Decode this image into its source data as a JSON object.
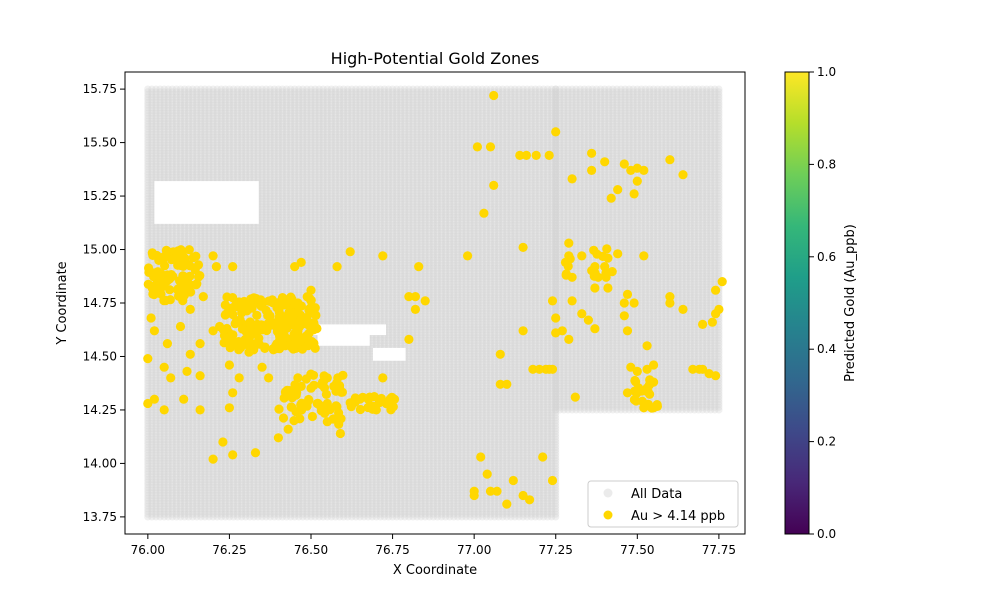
{
  "chart_data": {
    "type": "scatter",
    "title": "High-Potential Gold Zones",
    "xlabel": "X Coordinate",
    "ylabel": "Y Coordinate",
    "xlim": [
      75.93,
      77.83
    ],
    "ylim": [
      13.67,
      15.83
    ],
    "xticks": [
      76.0,
      76.25,
      76.5,
      76.75,
      77.0,
      77.25,
      77.5,
      77.75
    ],
    "xtick_labels": [
      "76.00",
      "76.25",
      "76.50",
      "76.75",
      "77.00",
      "77.25",
      "77.50",
      "77.75"
    ],
    "yticks": [
      13.75,
      14.0,
      14.25,
      14.5,
      14.75,
      15.0,
      15.25,
      15.5,
      15.75
    ],
    "ytick_labels": [
      "13.75",
      "14.00",
      "14.25",
      "14.50",
      "14.75",
      "15.00",
      "15.25",
      "15.50",
      "15.75"
    ],
    "grid": false,
    "legend_position": "lower-right",
    "series": [
      {
        "name": "All Data",
        "color": "#d3d3d3",
        "alpha": 0.35,
        "description_of_extent": "dense regular grid",
        "grid_step": 0.0125,
        "regions": [
          {
            "x": [
              76.0,
              77.25
            ],
            "y": [
              13.75,
              15.75
            ]
          },
          {
            "x": [
              77.25,
              77.75
            ],
            "y": [
              14.25,
              15.75
            ]
          }
        ],
        "gaps": [
          {
            "x": [
              76.02,
              76.34
            ],
            "y": [
              15.12,
              15.32
            ]
          },
          {
            "x": [
              76.05,
              76.18
            ],
            "y": [
              15.15,
              15.22
            ]
          },
          {
            "x": [
              76.18,
              76.32
            ],
            "y": [
              15.21,
              15.29
            ]
          },
          {
            "x": [
              76.5,
              76.73
            ],
            "y": [
              14.6,
              14.65
            ]
          },
          {
            "x": [
              76.52,
              76.68
            ],
            "y": [
              14.55,
              14.63
            ]
          },
          {
            "x": [
              76.69,
              76.79
            ],
            "y": [
              14.48,
              14.54
            ]
          }
        ]
      },
      {
        "name": "Au > 4.14 ppb",
        "color": "#ffd700",
        "clusters": [
          {
            "x": [
              76.0,
              76.16
            ],
            "y": [
              14.76,
              15.0
            ],
            "count": 90
          },
          {
            "x": [
              76.23,
              76.52
            ],
            "y": [
              14.53,
              14.78
            ],
            "count": 190
          },
          {
            "x": [
              76.4,
              76.6
            ],
            "y": [
              14.18,
              14.42
            ],
            "count": 60
          },
          {
            "x": [
              76.62,
              76.76
            ],
            "y": [
              14.25,
              14.32
            ],
            "count": 20
          },
          {
            "x": [
              77.49,
              77.57
            ],
            "y": [
              14.25,
              14.4
            ],
            "count": 20
          },
          {
            "x": [
              77.28,
              77.45
            ],
            "y": [
              14.87,
              15.02
            ],
            "count": 14
          }
        ],
        "points": [
          [
            76.02,
            14.62
          ],
          [
            76.01,
            14.68
          ],
          [
            76.0,
            14.49
          ],
          [
            76.05,
            14.45
          ],
          [
            76.07,
            14.4
          ],
          [
            76.06,
            14.56
          ],
          [
            76.1,
            14.64
          ],
          [
            76.12,
            14.43
          ],
          [
            76.16,
            14.41
          ],
          [
            76.11,
            14.3
          ],
          [
            76.05,
            14.25
          ],
          [
            76.0,
            14.28
          ],
          [
            76.02,
            14.3
          ],
          [
            76.16,
            14.25
          ],
          [
            76.13,
            14.51
          ],
          [
            76.16,
            14.56
          ],
          [
            76.2,
            14.02
          ],
          [
            76.23,
            14.1
          ],
          [
            76.26,
            14.04
          ],
          [
            76.33,
            14.05
          ],
          [
            76.25,
            14.26
          ],
          [
            76.26,
            14.33
          ],
          [
            76.25,
            14.46
          ],
          [
            76.26,
            14.92
          ],
          [
            76.2,
            14.97
          ],
          [
            76.21,
            14.92
          ],
          [
            76.17,
            14.78
          ],
          [
            76.15,
            14.84
          ],
          [
            76.13,
            14.72
          ],
          [
            76.2,
            14.62
          ],
          [
            76.22,
            14.64
          ],
          [
            76.28,
            14.4
          ],
          [
            76.37,
            14.4
          ],
          [
            76.35,
            14.45
          ],
          [
            76.31,
            14.52
          ],
          [
            76.4,
            14.12
          ],
          [
            76.43,
            14.16
          ],
          [
            76.46,
            14.4
          ],
          [
            76.47,
            14.36
          ],
          [
            76.5,
            14.76
          ],
          [
            76.5,
            14.81
          ],
          [
            76.46,
            14.75
          ],
          [
            76.45,
            14.92
          ],
          [
            76.47,
            14.94
          ],
          [
            76.55,
            14.28
          ],
          [
            76.57,
            14.36
          ],
          [
            76.55,
            14.4
          ],
          [
            76.59,
            14.14
          ],
          [
            76.58,
            14.92
          ],
          [
            76.62,
            14.99
          ],
          [
            76.65,
            14.3
          ],
          [
            76.68,
            14.31
          ],
          [
            76.7,
            14.25
          ],
          [
            76.72,
            14.4
          ],
          [
            76.72,
            14.97
          ],
          [
            76.83,
            14.92
          ],
          [
            76.8,
            14.78
          ],
          [
            76.82,
            14.72
          ],
          [
            76.82,
            14.78
          ],
          [
            76.85,
            14.76
          ],
          [
            76.8,
            14.58
          ],
          [
            76.98,
            14.97
          ],
          [
            77.0,
            13.85
          ],
          [
            77.0,
            13.87
          ],
          [
            77.02,
            14.03
          ],
          [
            77.04,
            13.95
          ],
          [
            77.05,
            13.87
          ],
          [
            77.07,
            13.87
          ],
          [
            77.1,
            13.81
          ],
          [
            77.12,
            13.92
          ],
          [
            77.15,
            13.85
          ],
          [
            77.17,
            13.83
          ],
          [
            77.21,
            14.03
          ],
          [
            77.24,
            13.92
          ],
          [
            77.08,
            14.51
          ],
          [
            77.08,
            14.37
          ],
          [
            77.1,
            14.37
          ],
          [
            77.15,
            14.62
          ],
          [
            77.15,
            15.01
          ],
          [
            77.18,
            14.44
          ],
          [
            77.2,
            14.44
          ],
          [
            77.22,
            14.44
          ],
          [
            77.23,
            14.44
          ],
          [
            77.24,
            14.44
          ],
          [
            77.01,
            15.48
          ],
          [
            77.03,
            15.17
          ],
          [
            77.05,
            15.48
          ],
          [
            77.06,
            15.72
          ],
          [
            77.06,
            15.3
          ],
          [
            77.14,
            15.44
          ],
          [
            77.16,
            15.44
          ],
          [
            77.19,
            15.44
          ],
          [
            77.23,
            15.44
          ],
          [
            77.25,
            15.55
          ],
          [
            77.3,
            15.33
          ],
          [
            77.36,
            15.45
          ],
          [
            77.36,
            15.37
          ],
          [
            77.4,
            15.41
          ],
          [
            77.42,
            15.24
          ],
          [
            77.44,
            15.28
          ],
          [
            77.46,
            15.4
          ],
          [
            77.48,
            15.37
          ],
          [
            77.5,
            15.38
          ],
          [
            77.5,
            15.32
          ],
          [
            77.52,
            15.37
          ],
          [
            77.49,
            15.26
          ],
          [
            77.6,
            15.42
          ],
          [
            77.64,
            15.35
          ],
          [
            77.24,
            14.76
          ],
          [
            77.25,
            14.68
          ],
          [
            77.25,
            14.61
          ],
          [
            77.27,
            14.62
          ],
          [
            77.29,
            14.58
          ],
          [
            77.31,
            14.31
          ],
          [
            77.3,
            14.76
          ],
          [
            77.33,
            14.7
          ],
          [
            77.35,
            14.67
          ],
          [
            77.37,
            14.63
          ],
          [
            77.37,
            14.82
          ],
          [
            77.41,
            14.82
          ],
          [
            77.41,
            14.96
          ],
          [
            77.47,
            14.79
          ],
          [
            77.46,
            14.75
          ],
          [
            77.52,
            14.97
          ],
          [
            77.48,
            14.45
          ],
          [
            77.5,
            14.43
          ],
          [
            77.53,
            14.44
          ],
          [
            77.55,
            14.46
          ],
          [
            77.53,
            14.55
          ],
          [
            77.55,
            14.38
          ],
          [
            77.6,
            14.78
          ],
          [
            77.6,
            14.75
          ],
          [
            77.64,
            14.72
          ],
          [
            77.67,
            14.44
          ],
          [
            77.69,
            14.44
          ],
          [
            77.7,
            14.44
          ],
          [
            77.72,
            14.42
          ],
          [
            77.74,
            14.41
          ],
          [
            77.7,
            14.65
          ],
          [
            77.73,
            14.66
          ],
          [
            77.74,
            14.7
          ],
          [
            77.75,
            14.72
          ],
          [
            77.74,
            14.81
          ],
          [
            77.76,
            14.85
          ],
          [
            77.55,
            14.26
          ],
          [
            77.52,
            14.26
          ],
          [
            77.47,
            14.33
          ],
          [
            77.47,
            14.62
          ],
          [
            77.49,
            14.75
          ],
          [
            77.46,
            14.69
          ],
          [
            77.44,
            14.98
          ],
          [
            77.4,
            14.92
          ],
          [
            77.38,
            14.87
          ],
          [
            77.37,
            14.92
          ],
          [
            77.33,
            14.97
          ],
          [
            77.3,
            14.87
          ],
          [
            77.29,
            14.97
          ],
          [
            77.29,
            15.03
          ],
          [
            77.28,
            14.94
          ]
        ]
      }
    ],
    "colorbar": {
      "label": "Predicted Gold (Au_ppb)",
      "min": 0.0,
      "max": 1.0,
      "ticks": [
        "0.0",
        "0.2",
        "0.4",
        "0.6",
        "0.8",
        "1.0"
      ],
      "tick_values": [
        0.0,
        0.2,
        0.4,
        0.6,
        0.8,
        1.0
      ],
      "colormap": "viridis",
      "colormap_stops": [
        "#440154",
        "#482878",
        "#3e4989",
        "#31688e",
        "#26828e",
        "#1f9e89",
        "#35b779",
        "#6ece58",
        "#b5de2b",
        "#fde725"
      ]
    }
  }
}
